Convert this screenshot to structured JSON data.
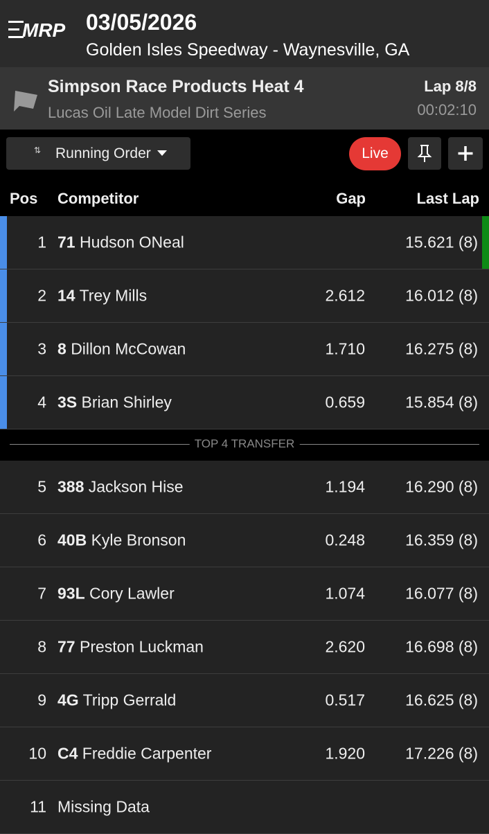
{
  "header": {
    "logo": "MRP",
    "date": "03/05/2026",
    "venue": "Golden Isles Speedway - Waynesville, GA"
  },
  "race": {
    "title": "Simpson Race Products Heat 4",
    "series": "Lucas Oil Late Model Dirt Series",
    "lap": "Lap 8/8",
    "time": "00:02:10"
  },
  "toolbar": {
    "view": "Running Order",
    "live": "Live"
  },
  "table": {
    "columns": [
      "Pos",
      "Competitor",
      "Gap",
      "Last Lap"
    ],
    "divider": "TOP 4 TRANSFER",
    "rows": [
      {
        "pos": "1",
        "number": "71",
        "name": "Hudson ONeal",
        "last_lap": "15.621 (8)"
      },
      {
        "pos": "2",
        "number": "14",
        "name": "Trey Mills",
        "gap": "2.612",
        "last_lap": "16.012 (8)"
      },
      {
        "pos": "3",
        "number": "8",
        "name": "Dillon McCowan",
        "gap": "1.710",
        "last_lap": "16.275 (8)"
      },
      {
        "pos": "4",
        "number": "3S",
        "name": "Brian Shirley",
        "gap": "0.659",
        "last_lap": "15.854 (8)"
      },
      {
        "pos": "5",
        "number": "388",
        "name": "Jackson Hise",
        "gap": "1.194",
        "last_lap": "16.290 (8)"
      },
      {
        "pos": "6",
        "number": "40B",
        "name": "Kyle Bronson",
        "gap": "0.248",
        "last_lap": "16.359 (8)"
      },
      {
        "pos": "7",
        "number": "93L",
        "name": "Cory Lawler",
        "gap": "1.074",
        "last_lap": "16.077 (8)"
      },
      {
        "pos": "8",
        "number": "77",
        "name": "Preston Luckman",
        "gap": "2.620",
        "last_lap": "16.698 (8)"
      },
      {
        "pos": "9",
        "number": "4G",
        "name": "Tripp Gerrald",
        "gap": "0.517",
        "last_lap": "16.625 (8)"
      },
      {
        "pos": "10",
        "number": "C4",
        "name": "Freddie Carpenter",
        "gap": "1.920",
        "last_lap": "17.226 (8)"
      },
      {
        "pos": "11",
        "name": "Missing Data"
      }
    ]
  }
}
